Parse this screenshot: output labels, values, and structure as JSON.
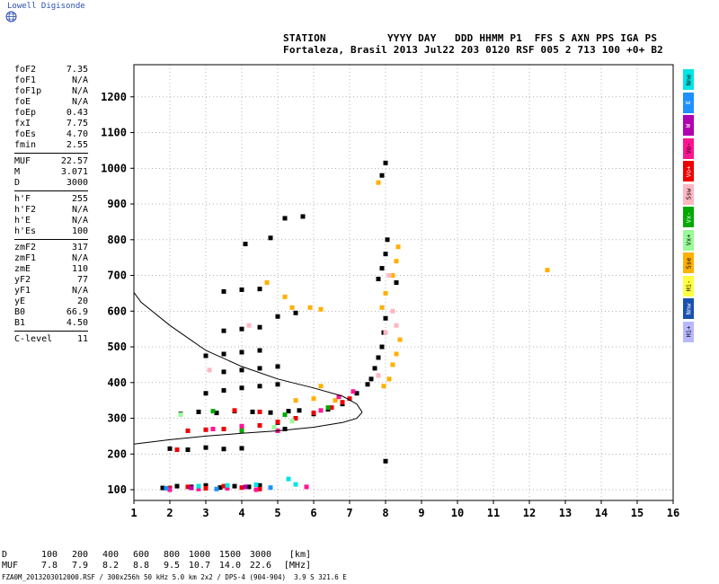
{
  "brand": "Lowell Digisonde",
  "header": {
    "line1": "STATION          YYYY DAY   DDD HHMM P1  FFS S AXN PPS IGA PS",
    "line2": "Fortaleza, Brasil 2013 Jul22 203 0120 RSF 005 2 713 100 +0+ B2"
  },
  "params": [
    [
      [
        "foF2",
        "7.35"
      ],
      [
        "foF1",
        "N/A"
      ],
      [
        "foF1p",
        "N/A"
      ],
      [
        "foE",
        "N/A"
      ],
      [
        "foEp",
        "0.43"
      ],
      [
        "fxI",
        "7.75"
      ],
      [
        "foEs",
        "4.70"
      ],
      [
        "fmin",
        "2.55"
      ]
    ],
    [
      [
        "MUF",
        "22.57"
      ],
      [
        "M",
        "3.071"
      ],
      [
        "D",
        "3000"
      ]
    ],
    [
      [
        "h'F",
        "255"
      ],
      [
        "h'F2",
        "N/A"
      ],
      [
        "h'E",
        "N/A"
      ],
      [
        "h'Es",
        "100"
      ]
    ],
    [
      [
        "zmF2",
        "317"
      ],
      [
        "zmF1",
        "N/A"
      ],
      [
        "zmE",
        "110"
      ],
      [
        "yF2",
        "77"
      ],
      [
        "yF1",
        "N/A"
      ],
      [
        "yE",
        "20"
      ],
      [
        "B0",
        "66.9"
      ],
      [
        "B1",
        "4.50"
      ]
    ],
    [
      [
        "C-level",
        "11"
      ]
    ]
  ],
  "legend": [
    {
      "label": "Nne",
      "color": "#00e5e5"
    },
    {
      "label": "E",
      "color": "#1e90ff"
    },
    {
      "label": "W",
      "color": "#b000b0"
    },
    {
      "label": "Vo-",
      "color": "#ff1493"
    },
    {
      "label": "Vo+",
      "color": "#ee0000"
    },
    {
      "label": "Ssw",
      "color": "#ffb6c1"
    },
    {
      "label": "Vx-",
      "color": "#00aa00"
    },
    {
      "label": "Vx+",
      "color": "#98fb98"
    },
    {
      "label": "Sse",
      "color": "#ffb000"
    },
    {
      "label": "Hi-",
      "color": "#ffff40"
    },
    {
      "label": "Nnw",
      "color": "#1a50b0"
    },
    {
      "label": "Hi+",
      "color": "#b8b8ff"
    }
  ],
  "muf_table": {
    "d_label": "D",
    "muf_label": "MUF",
    "d_values": [
      "100",
      "200",
      "400",
      "600",
      "800",
      "1000",
      "1500",
      "3000"
    ],
    "muf_values": [
      "7.8",
      "7.9",
      "8.2",
      "8.8",
      "9.5",
      "10.7",
      "14.0",
      "22.6"
    ],
    "d_unit": "[km]",
    "muf_unit": "[MHz]"
  },
  "footer": "FZA0M_2013203012000.RSF / 300x256h 50 kHz 5.0 km 2x2 / DPS-4 (904-904)  3.9 S 321.6 E",
  "chart_data": {
    "type": "scatter",
    "title": "",
    "xlabel": "",
    "ylabel": "",
    "xlim": [
      1,
      16
    ],
    "ylim": [
      70,
      1290
    ],
    "xticks": [
      1,
      2,
      3,
      4,
      5,
      6,
      7,
      8,
      9,
      10,
      11,
      12,
      13,
      14,
      15,
      16
    ],
    "yticks": [
      100,
      200,
      300,
      400,
      500,
      600,
      700,
      800,
      900,
      1000,
      1100,
      1200
    ],
    "grid": true,
    "series": [
      {
        "color": "#000000",
        "points": [
          [
            1.8,
            105
          ],
          [
            2.2,
            110
          ],
          [
            2.6,
            108
          ],
          [
            3.0,
            112
          ],
          [
            3.4,
            106
          ],
          [
            3.8,
            110
          ],
          [
            4.2,
            108
          ],
          [
            4.5,
            112
          ],
          [
            2.0,
            215
          ],
          [
            2.5,
            212
          ],
          [
            3.0,
            218
          ],
          [
            3.5,
            214
          ],
          [
            4.0,
            216
          ],
          [
            2.3,
            312
          ],
          [
            2.8,
            318
          ],
          [
            3.3,
            315
          ],
          [
            3.8,
            320
          ],
          [
            4.3,
            318
          ],
          [
            4.8,
            316
          ],
          [
            5.3,
            320
          ],
          [
            5.6,
            322
          ],
          [
            4.5,
            280
          ],
          [
            5.0,
            288
          ],
          [
            5.5,
            300
          ],
          [
            6.0,
            312
          ],
          [
            6.4,
            325
          ],
          [
            6.8,
            340
          ],
          [
            7.2,
            370
          ],
          [
            7.5,
            395
          ],
          [
            7.6,
            410
          ],
          [
            7.7,
            440
          ],
          [
            7.8,
            470
          ],
          [
            7.9,
            500
          ],
          [
            7.95,
            540
          ],
          [
            8.0,
            580
          ],
          [
            7.8,
            690
          ],
          [
            7.9,
            720
          ],
          [
            8.0,
            760
          ],
          [
            8.05,
            800
          ],
          [
            8.0,
            1015
          ],
          [
            7.9,
            980
          ],
          [
            3.0,
            370
          ],
          [
            3.5,
            378
          ],
          [
            4.0,
            385
          ],
          [
            4.5,
            390
          ],
          [
            5.0,
            395
          ],
          [
            3.5,
            430
          ],
          [
            4.0,
            435
          ],
          [
            4.5,
            440
          ],
          [
            5.0,
            445
          ],
          [
            3.0,
            475
          ],
          [
            3.5,
            480
          ],
          [
            4.0,
            485
          ],
          [
            4.5,
            490
          ],
          [
            3.5,
            545
          ],
          [
            4.0,
            550
          ],
          [
            4.5,
            555
          ],
          [
            5.0,
            585
          ],
          [
            5.5,
            595
          ],
          [
            3.5,
            655
          ],
          [
            4.0,
            660
          ],
          [
            4.5,
            662
          ],
          [
            5.2,
            860
          ],
          [
            5.7,
            865
          ],
          [
            4.8,
            805
          ],
          [
            4.1,
            788
          ],
          [
            5.2,
            270
          ],
          [
            8.0,
            180
          ],
          [
            8.3,
            680
          ]
        ]
      },
      {
        "color": "#ee0000",
        "points": [
          [
            2.5,
            265
          ],
          [
            3.0,
            268
          ],
          [
            3.5,
            270
          ],
          [
            4.0,
            272
          ],
          [
            4.5,
            280
          ],
          [
            5.0,
            290
          ],
          [
            5.5,
            300
          ],
          [
            6.0,
            315
          ],
          [
            6.5,
            330
          ],
          [
            6.8,
            345
          ],
          [
            7.0,
            355
          ],
          [
            2.0,
            105
          ],
          [
            2.5,
            108
          ],
          [
            3.0,
            104
          ],
          [
            3.5,
            110
          ],
          [
            4.0,
            106
          ],
          [
            4.5,
            102
          ],
          [
            3.8,
            322
          ],
          [
            4.5,
            318
          ],
          [
            2.2,
            212
          ]
        ]
      },
      {
        "color": "#ffb000",
        "points": [
          [
            7.9,
            610
          ],
          [
            8.0,
            650
          ],
          [
            8.2,
            700
          ],
          [
            8.3,
            740
          ],
          [
            8.35,
            780
          ],
          [
            8.4,
            520
          ],
          [
            8.3,
            480
          ],
          [
            8.2,
            450
          ],
          [
            8.1,
            410
          ],
          [
            7.95,
            390
          ],
          [
            7.8,
            960
          ],
          [
            5.2,
            640
          ],
          [
            5.5,
            350
          ],
          [
            6.0,
            355
          ],
          [
            6.6,
            350
          ],
          [
            12.5,
            715
          ],
          [
            4.7,
            680
          ],
          [
            5.4,
            610
          ],
          [
            6.2,
            390
          ],
          [
            6.2,
            605
          ],
          [
            5.9,
            610
          ]
        ]
      },
      {
        "color": "#ff1493",
        "points": [
          [
            2.0,
            100
          ],
          [
            2.8,
            102
          ],
          [
            3.6,
            104
          ],
          [
            4.4,
            100
          ],
          [
            5.0,
            265
          ],
          [
            6.2,
            322
          ],
          [
            6.7,
            360
          ],
          [
            7.1,
            375
          ],
          [
            3.2,
            270
          ],
          [
            4.0,
            278
          ],
          [
            5.8,
            108
          ]
        ]
      },
      {
        "color": "#00e5e5",
        "points": [
          [
            5.3,
            130
          ],
          [
            5.5,
            115
          ],
          [
            2.8,
            110
          ],
          [
            3.6,
            112
          ],
          [
            4.4,
            114
          ]
        ]
      },
      {
        "color": "#00aa00",
        "points": [
          [
            3.2,
            320
          ],
          [
            4.0,
            265
          ],
          [
            5.2,
            310
          ],
          [
            6.4,
            330
          ]
        ]
      },
      {
        "color": "#ffb6c1",
        "points": [
          [
            8.1,
            700
          ],
          [
            8.2,
            600
          ],
          [
            8.3,
            560
          ],
          [
            8.0,
            540
          ],
          [
            7.8,
            420
          ],
          [
            3.1,
            435
          ],
          [
            4.2,
            560
          ]
        ]
      },
      {
        "color": "#98fb98",
        "points": [
          [
            2.3,
            310
          ],
          [
            4.9,
            275
          ],
          [
            5.4,
            292
          ]
        ]
      },
      {
        "color": "#1e90ff",
        "points": [
          [
            1.9,
            104
          ],
          [
            3.3,
            102
          ],
          [
            4.8,
            106
          ]
        ]
      },
      {
        "color": "#b000b0",
        "points": [
          [
            2.6,
            105
          ],
          [
            4.1,
            108
          ]
        ]
      }
    ],
    "profile": [
      [
        7.35,
        317
      ],
      [
        7.2,
        340
      ],
      [
        6.8,
        362
      ],
      [
        6.0,
        385
      ],
      [
        5.0,
        410
      ],
      [
        4.0,
        445
      ],
      [
        3.0,
        490
      ],
      [
        2.0,
        560
      ],
      [
        1.2,
        625
      ],
      [
        1.0,
        652
      ],
      [
        7.2,
        300
      ],
      [
        6.8,
        288
      ],
      [
        6.0,
        275
      ],
      [
        5.0,
        265
      ],
      [
        4.0,
        258
      ],
      [
        3.0,
        250
      ],
      [
        2.0,
        240
      ],
      [
        1.0,
        228
      ]
    ]
  }
}
